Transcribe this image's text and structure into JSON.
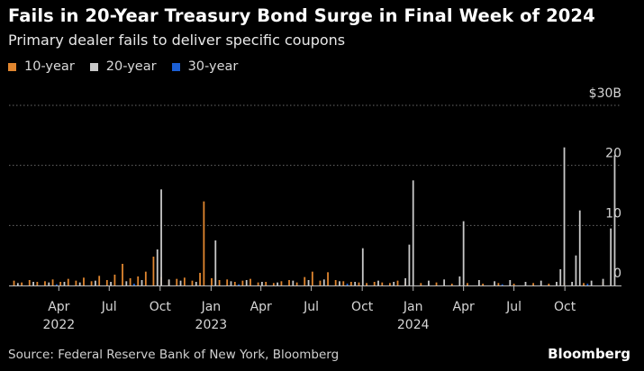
{
  "chart_data": {
    "type": "bar",
    "title": "Fails in 20-Year Treasury Bond Surge in Final Week of 2024",
    "subtitle": "Primary dealer fails to deliver specific coupons",
    "unit": "weekly fails, $ billions",
    "ylim": [
      0,
      30
    ],
    "y_ticks": [
      {
        "value": 0,
        "label": "0"
      },
      {
        "value": 10,
        "label": "10"
      },
      {
        "value": 20,
        "label": "20"
      },
      {
        "value": 30,
        "label": "$30B"
      }
    ],
    "x_range": [
      "2022-01-01",
      "2025-01-08"
    ],
    "x_ticks": [
      {
        "date": "2022-04-01",
        "label": "Apr",
        "year": "2022"
      },
      {
        "date": "2022-07-01",
        "label": "Jul",
        "year": ""
      },
      {
        "date": "2022-10-01",
        "label": "Oct",
        "year": ""
      },
      {
        "date": "2023-01-01",
        "label": "Jan",
        "year": "2023"
      },
      {
        "date": "2023-04-01",
        "label": "Apr",
        "year": ""
      },
      {
        "date": "2023-07-01",
        "label": "Jul",
        "year": ""
      },
      {
        "date": "2023-10-01",
        "label": "Oct",
        "year": ""
      },
      {
        "date": "2024-01-01",
        "label": "Jan",
        "year": "2024"
      },
      {
        "date": "2024-04-01",
        "label": "Apr",
        "year": ""
      },
      {
        "date": "2024-07-01",
        "label": "Jul",
        "year": ""
      },
      {
        "date": "2024-10-01",
        "label": "Oct",
        "year": ""
      }
    ],
    "series": [
      {
        "name": "10-year",
        "color": "#e0862f",
        "points": [
          [
            "2022-01-10",
            0.8
          ],
          [
            "2022-01-24",
            0.5
          ],
          [
            "2022-02-07",
            0.9
          ],
          [
            "2022-02-21",
            0.6
          ],
          [
            "2022-03-07",
            0.7
          ],
          [
            "2022-03-21",
            1.0
          ],
          [
            "2022-04-04",
            0.6
          ],
          [
            "2022-04-18",
            1.1
          ],
          [
            "2022-05-02",
            0.8
          ],
          [
            "2022-05-16",
            1.3
          ],
          [
            "2022-05-30",
            0.7
          ],
          [
            "2022-06-13",
            1.6
          ],
          [
            "2022-06-27",
            0.9
          ],
          [
            "2022-07-11",
            1.8
          ],
          [
            "2022-07-25",
            3.6
          ],
          [
            "2022-08-08",
            1.2
          ],
          [
            "2022-08-22",
            1.5
          ],
          [
            "2022-09-05",
            2.3
          ],
          [
            "2022-09-19",
            4.8
          ],
          [
            "2022-10-03",
            1.4
          ],
          [
            "2022-10-17",
            0.9
          ],
          [
            "2022-10-31",
            1.1
          ],
          [
            "2022-11-14",
            1.3
          ],
          [
            "2022-11-28",
            0.8
          ],
          [
            "2022-12-12",
            2.1
          ],
          [
            "2022-12-19",
            14.0
          ],
          [
            "2023-01-02",
            1.2
          ],
          [
            "2023-01-16",
            0.9
          ],
          [
            "2023-01-30",
            1.0
          ],
          [
            "2023-02-13",
            0.6
          ],
          [
            "2023-02-27",
            0.8
          ],
          [
            "2023-03-13",
            1.1
          ],
          [
            "2023-03-27",
            0.5
          ],
          [
            "2023-04-10",
            0.6
          ],
          [
            "2023-04-24",
            0.4
          ],
          [
            "2023-05-08",
            0.7
          ],
          [
            "2023-05-22",
            0.9
          ],
          [
            "2023-06-05",
            0.5
          ],
          [
            "2023-06-19",
            1.4
          ],
          [
            "2023-07-03",
            2.3
          ],
          [
            "2023-07-17",
            0.8
          ],
          [
            "2023-07-31",
            2.2
          ],
          [
            "2023-08-14",
            0.9
          ],
          [
            "2023-08-28",
            0.7
          ],
          [
            "2023-09-11",
            0.6
          ],
          [
            "2023-09-25",
            0.5
          ],
          [
            "2023-10-09",
            0.4
          ],
          [
            "2023-10-23",
            0.6
          ],
          [
            "2023-11-06",
            0.5
          ],
          [
            "2023-11-20",
            0.4
          ],
          [
            "2023-12-04",
            0.8
          ],
          [
            "2023-12-18",
            0.6
          ],
          [
            "2024-01-15",
            0.4
          ],
          [
            "2024-02-12",
            0.5
          ],
          [
            "2024-03-11",
            0.3
          ],
          [
            "2024-04-08",
            0.4
          ],
          [
            "2024-05-06",
            0.3
          ],
          [
            "2024-06-03",
            0.4
          ],
          [
            "2024-07-01",
            0.3
          ],
          [
            "2024-08-05",
            0.4
          ],
          [
            "2024-09-02",
            0.3
          ],
          [
            "2024-09-30",
            0.5
          ],
          [
            "2024-11-04",
            0.4
          ],
          [
            "2024-12-09",
            0.6
          ]
        ]
      },
      {
        "name": "20-year",
        "color": "#c8c8c8",
        "points": [
          [
            "2022-01-17",
            0.4
          ],
          [
            "2022-02-14",
            0.6
          ],
          [
            "2022-03-14",
            0.5
          ],
          [
            "2022-04-11",
            0.6
          ],
          [
            "2022-05-09",
            0.5
          ],
          [
            "2022-06-06",
            0.8
          ],
          [
            "2022-07-04",
            0.6
          ],
          [
            "2022-08-01",
            0.7
          ],
          [
            "2022-08-29",
            0.9
          ],
          [
            "2022-09-26",
            6.0
          ],
          [
            "2022-10-03",
            16.0
          ],
          [
            "2022-10-17",
            1.0
          ],
          [
            "2022-11-07",
            0.8
          ],
          [
            "2022-12-05",
            0.6
          ],
          [
            "2023-01-09",
            7.5
          ],
          [
            "2023-02-06",
            0.7
          ],
          [
            "2023-03-06",
            0.9
          ],
          [
            "2023-04-03",
            0.6
          ],
          [
            "2023-05-01",
            0.5
          ],
          [
            "2023-05-29",
            0.8
          ],
          [
            "2023-06-26",
            0.9
          ],
          [
            "2023-07-24",
            1.0
          ],
          [
            "2023-08-21",
            0.7
          ],
          [
            "2023-09-18",
            0.6
          ],
          [
            "2023-10-02",
            6.2
          ],
          [
            "2023-10-30",
            0.8
          ],
          [
            "2023-11-27",
            0.6
          ],
          [
            "2023-12-18",
            1.2
          ],
          [
            "2023-12-25",
            6.8
          ],
          [
            "2024-01-01",
            17.5
          ],
          [
            "2024-01-29",
            0.8
          ],
          [
            "2024-02-26",
            1.0
          ],
          [
            "2024-03-25",
            1.5
          ],
          [
            "2024-04-01",
            10.7
          ],
          [
            "2024-04-29",
            0.9
          ],
          [
            "2024-05-27",
            0.7
          ],
          [
            "2024-06-24",
            0.9
          ],
          [
            "2024-07-22",
            0.6
          ],
          [
            "2024-08-19",
            0.8
          ],
          [
            "2024-09-16",
            0.6
          ],
          [
            "2024-09-23",
            2.7
          ],
          [
            "2024-09-30",
            23.0
          ],
          [
            "2024-10-14",
            0.6
          ],
          [
            "2024-10-21",
            5.0
          ],
          [
            "2024-10-28",
            12.5
          ],
          [
            "2024-11-18",
            0.8
          ],
          [
            "2024-12-09",
            1.1
          ],
          [
            "2024-12-23",
            9.5
          ],
          [
            "2024-12-30",
            21.7
          ]
        ]
      },
      {
        "name": "30-year",
        "color": "#1b5fd4",
        "points": [
          [
            "2022-03-28",
            0.2
          ],
          [
            "2022-08-15",
            0.3
          ],
          [
            "2023-02-20",
            0.2
          ],
          [
            "2023-09-04",
            0.3
          ],
          [
            "2024-06-10",
            0.2
          ],
          [
            "2024-11-11",
            0.3
          ]
        ]
      }
    ],
    "legend": [
      "10-year",
      "20-year",
      "30-year"
    ],
    "source": "Source: Federal Reserve Bank of New York, Bloomberg",
    "brand": "Bloomberg"
  }
}
